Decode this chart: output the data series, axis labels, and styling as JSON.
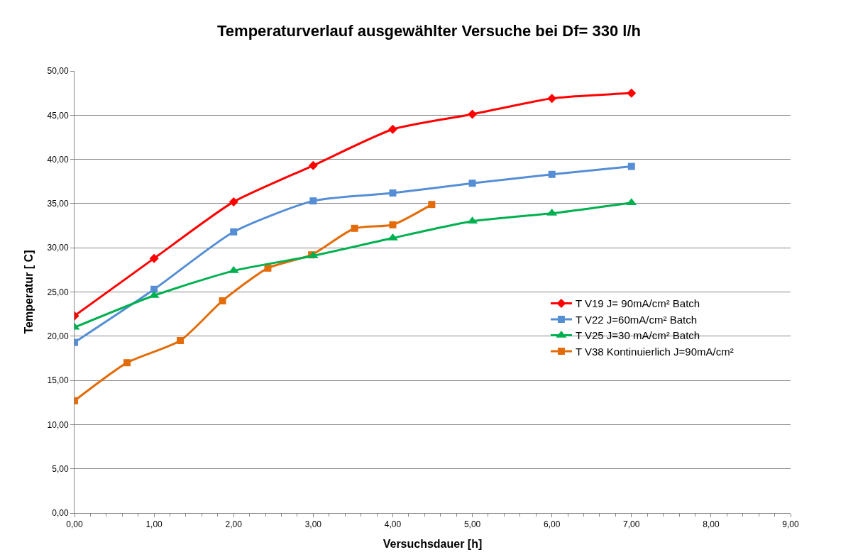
{
  "chart_data": {
    "type": "line",
    "title": "Temperaturverlauf ausgewählter Versuche bei Df= 330 l/h",
    "xlabel": "Versuchsdauer [h]",
    "ylabel": "Temperatur [ C]",
    "xlim": [
      0,
      9
    ],
    "xticks": [
      {
        "value": 0,
        "label": "0,00"
      },
      {
        "value": 1,
        "label": "1,00"
      },
      {
        "value": 2,
        "label": "2,00"
      },
      {
        "value": 3,
        "label": "3,00"
      },
      {
        "value": 4,
        "label": "4,00"
      },
      {
        "value": 5,
        "label": "5,00"
      },
      {
        "value": 6,
        "label": "6,00"
      },
      {
        "value": 7,
        "label": "7,00"
      },
      {
        "value": 8,
        "label": "8,00"
      },
      {
        "value": 9,
        "label": "9,00"
      }
    ],
    "ylim": [
      0,
      50
    ],
    "yticks": [
      {
        "value": 0,
        "label": "0,00"
      },
      {
        "value": 5,
        "label": "5,00"
      },
      {
        "value": 10,
        "label": "10,00"
      },
      {
        "value": 15,
        "label": "15,00"
      },
      {
        "value": 20,
        "label": "20,00"
      },
      {
        "value": 25,
        "label": "25,00"
      },
      {
        "value": 30,
        "label": "30,00"
      },
      {
        "value": 35,
        "label": "35,00"
      },
      {
        "value": 40,
        "label": "40,00"
      },
      {
        "value": 45,
        "label": "45,00"
      },
      {
        "value": 50,
        "label": "50,00"
      }
    ],
    "grid": "y",
    "legend": "right",
    "line_style": "solid",
    "series": [
      {
        "name": "T V19 J= 90mA/cm² Batch",
        "color": "#ff0000",
        "marker": "diamond",
        "x": [
          0,
          1,
          2,
          3,
          4,
          5,
          6,
          7
        ],
        "values": [
          22.3,
          28.8,
          35.2,
          39.3,
          43.4,
          45.1,
          46.9,
          47.5
        ]
      },
      {
        "name": "T V22 J=60mA/cm² Batch",
        "color": "#558ed5",
        "marker": "square",
        "x": [
          0,
          1,
          2,
          3,
          4,
          5,
          6,
          7
        ],
        "values": [
          19.3,
          25.3,
          31.8,
          35.3,
          36.2,
          37.3,
          38.3,
          39.2
        ]
      },
      {
        "name": "T V25 J=30 mA/cm² Batch",
        "color": "#00b050",
        "marker": "triangle",
        "x": [
          0,
          1,
          2,
          3,
          4,
          5,
          6,
          7
        ],
        "values": [
          21.0,
          24.6,
          27.4,
          29.1,
          31.1,
          33.0,
          33.9,
          35.1
        ]
      },
      {
        "name": "T V38 Kontinuierlich J=90mA/cm²",
        "color": "#e36c09",
        "marker": "square",
        "x": [
          0,
          0.66,
          1.33,
          1.86,
          2.43,
          2.98,
          3.52,
          4.0,
          4.49
        ],
        "values": [
          12.7,
          17.0,
          19.5,
          24.0,
          27.7,
          29.2,
          32.2,
          32.6,
          34.9
        ]
      }
    ]
  }
}
